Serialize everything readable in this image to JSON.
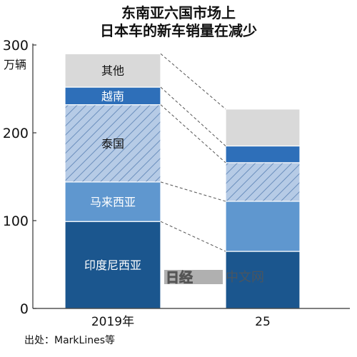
{
  "title_lines": [
    "东南亚六国市场上",
    "日本车的新车销量在减少"
  ],
  "source": "出处：MarkLines等",
  "watermark": {
    "logo_glyphs": "日经",
    "text": "中文网"
  },
  "colors": {
    "印度尼西亚": "#1b568e",
    "马来西亚": "#5f97cf",
    "泰国": "#b6cbe6",
    "泰国_hatch": "#6b8fbd",
    "越南": "#2e6fb9",
    "其他": "#d9d9d9"
  },
  "chart_data": {
    "type": "bar",
    "stacked": true,
    "categories": [
      "2019年",
      "25"
    ],
    "series": [
      {
        "name": "印度尼西亚",
        "values": [
          99,
          65
        ]
      },
      {
        "name": "马来西亚",
        "values": [
          45,
          57
        ]
      },
      {
        "name": "泰国",
        "values": [
          88,
          44
        ]
      },
      {
        "name": "越南",
        "values": [
          20,
          19
        ]
      },
      {
        "name": "其他",
        "values": [
          38,
          42
        ]
      }
    ],
    "ylim": [
      0,
      300
    ],
    "yticks": [
      0,
      100,
      200,
      300
    ],
    "ylabel": "万辆",
    "xlabel": "",
    "legend": "in-bar labels on first bar",
    "connector_lines": "dashed"
  }
}
